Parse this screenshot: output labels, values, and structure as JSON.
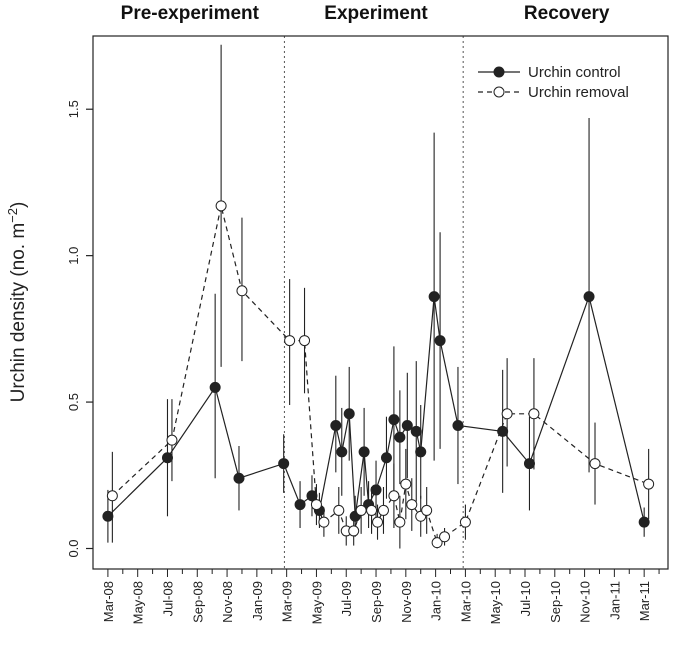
{
  "chart_data": {
    "type": "line",
    "ylabel": "Urchin density (no. m",
    "ylabel_sup": "−2",
    "ylabel_close": ")",
    "yticks": [
      0.0,
      0.5,
      1.0,
      1.5
    ],
    "ytick_labels": [
      "0.0",
      "0.5",
      "1.0",
      "1.5"
    ],
    "ylim": [
      -0.07,
      1.75
    ],
    "xlim": [
      -1.0,
      37.6
    ],
    "xticks": [
      {
        "label": "Mar-08",
        "x": 0
      },
      {
        "label": "May-08",
        "x": 2
      },
      {
        "label": "Jul-08",
        "x": 4
      },
      {
        "label": "Sep-08",
        "x": 6
      },
      {
        "label": "Nov-08",
        "x": 8
      },
      {
        "label": "Jan-09",
        "x": 10
      },
      {
        "label": "Mar-09",
        "x": 12
      },
      {
        "label": "May-09",
        "x": 14
      },
      {
        "label": "Jul-09",
        "x": 16
      },
      {
        "label": "Sep-09",
        "x": 18
      },
      {
        "label": "Nov-09",
        "x": 20
      },
      {
        "label": "Jan-10",
        "x": 22
      },
      {
        "label": "Mar-10",
        "x": 24
      },
      {
        "label": "May-10",
        "x": 26
      },
      {
        "label": "Jul-10",
        "x": 28
      },
      {
        "label": "Sep-10",
        "x": 30
      },
      {
        "label": "Nov-10",
        "x": 32
      },
      {
        "label": "Jan-11",
        "x": 34
      },
      {
        "label": "Mar-11",
        "x": 36
      }
    ],
    "phases": [
      {
        "label": "Pre-experiment",
        "x_center": 5.5
      },
      {
        "label": "Experiment",
        "x_center": 18.0
      },
      {
        "label": "Recovery",
        "x_center": 30.8
      }
    ],
    "phase_boundaries": [
      11.85,
      23.85
    ],
    "legend_position": "top-right",
    "series": [
      {
        "name": "Urchin control",
        "marker": "filled",
        "linestyle": "solid",
        "points": [
          {
            "x": 0.0,
            "y": 0.11,
            "lo": 0.02,
            "hi": 0.2
          },
          {
            "x": 4.0,
            "y": 0.31,
            "lo": 0.11,
            "hi": 0.51
          },
          {
            "x": 7.2,
            "y": 0.55,
            "lo": 0.24,
            "hi": 0.87
          },
          {
            "x": 8.8,
            "y": 0.24,
            "lo": 0.13,
            "hi": 0.35
          },
          {
            "x": 11.8,
            "y": 0.29,
            "lo": 0.19,
            "hi": 0.39
          },
          {
            "x": 12.9,
            "y": 0.15,
            "lo": 0.07,
            "hi": 0.23
          },
          {
            "x": 13.7,
            "y": 0.18,
            "lo": 0.11,
            "hi": 0.25
          },
          {
            "x": 14.2,
            "y": 0.13,
            "lo": 0.07,
            "hi": 0.19
          },
          {
            "x": 15.3,
            "y": 0.42,
            "lo": 0.26,
            "hi": 0.59
          },
          {
            "x": 15.7,
            "y": 0.33,
            "lo": 0.18,
            "hi": 0.48
          },
          {
            "x": 16.2,
            "y": 0.46,
            "lo": 0.3,
            "hi": 0.62
          },
          {
            "x": 16.6,
            "y": 0.11,
            "lo": 0.04,
            "hi": 0.18
          },
          {
            "x": 17.2,
            "y": 0.33,
            "lo": 0.18,
            "hi": 0.48
          },
          {
            "x": 17.5,
            "y": 0.15,
            "lo": 0.07,
            "hi": 0.23
          },
          {
            "x": 18.0,
            "y": 0.2,
            "lo": 0.1,
            "hi": 0.3
          },
          {
            "x": 18.7,
            "y": 0.31,
            "lo": 0.17,
            "hi": 0.45
          },
          {
            "x": 19.2,
            "y": 0.44,
            "lo": 0.19,
            "hi": 0.69
          },
          {
            "x": 19.6,
            "y": 0.38,
            "lo": 0.22,
            "hi": 0.54
          },
          {
            "x": 20.1,
            "y": 0.42,
            "lo": 0.24,
            "hi": 0.6
          },
          {
            "x": 20.7,
            "y": 0.4,
            "lo": 0.16,
            "hi": 0.64
          },
          {
            "x": 21.0,
            "y": 0.33,
            "lo": 0.17,
            "hi": 0.49
          },
          {
            "x": 21.9,
            "y": 0.86,
            "lo": 0.3,
            "hi": 1.42
          },
          {
            "x": 22.3,
            "y": 0.71,
            "lo": 0.34,
            "hi": 1.08
          },
          {
            "x": 23.5,
            "y": 0.42,
            "lo": 0.22,
            "hi": 0.62
          },
          {
            "x": 26.5,
            "y": 0.4,
            "lo": 0.19,
            "hi": 0.61
          },
          {
            "x": 28.3,
            "y": 0.29,
            "lo": 0.13,
            "hi": 0.45
          },
          {
            "x": 32.3,
            "y": 0.86,
            "lo": 0.26,
            "hi": 1.47
          },
          {
            "x": 36.0,
            "y": 0.09,
            "lo": 0.04,
            "hi": 0.14
          }
        ]
      },
      {
        "name": "Urchin removal",
        "marker": "open",
        "linestyle": "dashed",
        "points": [
          {
            "x": 0.3,
            "y": 0.18,
            "lo": 0.02,
            "hi": 0.33
          },
          {
            "x": 4.3,
            "y": 0.37,
            "lo": 0.23,
            "hi": 0.51
          },
          {
            "x": 7.6,
            "y": 1.17,
            "lo": 0.62,
            "hi": 1.72
          },
          {
            "x": 9.0,
            "y": 0.88,
            "lo": 0.64,
            "hi": 1.13
          },
          {
            "x": 12.2,
            "y": 0.71,
            "lo": 0.49,
            "hi": 0.92
          },
          {
            "x": 13.2,
            "y": 0.71,
            "lo": 0.53,
            "hi": 0.89
          },
          {
            "x": 14.0,
            "y": 0.15,
            "lo": 0.08,
            "hi": 0.22
          },
          {
            "x": 14.5,
            "y": 0.09,
            "lo": 0.04,
            "hi": 0.14
          },
          {
            "x": 15.5,
            "y": 0.13,
            "lo": 0.05,
            "hi": 0.21
          },
          {
            "x": 16.0,
            "y": 0.06,
            "lo": 0.01,
            "hi": 0.11
          },
          {
            "x": 16.5,
            "y": 0.06,
            "lo": 0.01,
            "hi": 0.11
          },
          {
            "x": 17.0,
            "y": 0.13,
            "lo": 0.05,
            "hi": 0.21
          },
          {
            "x": 17.7,
            "y": 0.13,
            "lo": 0.05,
            "hi": 0.21
          },
          {
            "x": 18.1,
            "y": 0.09,
            "lo": 0.03,
            "hi": 0.15
          },
          {
            "x": 18.5,
            "y": 0.13,
            "lo": 0.05,
            "hi": 0.21
          },
          {
            "x": 19.2,
            "y": 0.18,
            "lo": 0.07,
            "hi": 0.29
          },
          {
            "x": 19.6,
            "y": 0.09,
            "lo": 0.0,
            "hi": 0.18
          },
          {
            "x": 20.0,
            "y": 0.22,
            "lo": 0.1,
            "hi": 0.34
          },
          {
            "x": 20.4,
            "y": 0.15,
            "lo": 0.06,
            "hi": 0.24
          },
          {
            "x": 21.0,
            "y": 0.11,
            "lo": 0.04,
            "hi": 0.18
          },
          {
            "x": 21.4,
            "y": 0.13,
            "lo": 0.05,
            "hi": 0.21
          },
          {
            "x": 22.1,
            "y": 0.02,
            "lo": 0.0,
            "hi": 0.05
          },
          {
            "x": 22.6,
            "y": 0.04,
            "lo": 0.01,
            "hi": 0.07
          },
          {
            "x": 24.0,
            "y": 0.09,
            "lo": 0.03,
            "hi": 0.15
          },
          {
            "x": 26.8,
            "y": 0.46,
            "lo": 0.28,
            "hi": 0.65
          },
          {
            "x": 28.6,
            "y": 0.46,
            "lo": 0.27,
            "hi": 0.65
          },
          {
            "x": 32.7,
            "y": 0.29,
            "lo": 0.15,
            "hi": 0.43
          },
          {
            "x": 36.3,
            "y": 0.22,
            "lo": 0.1,
            "hi": 0.34
          }
        ]
      }
    ]
  }
}
